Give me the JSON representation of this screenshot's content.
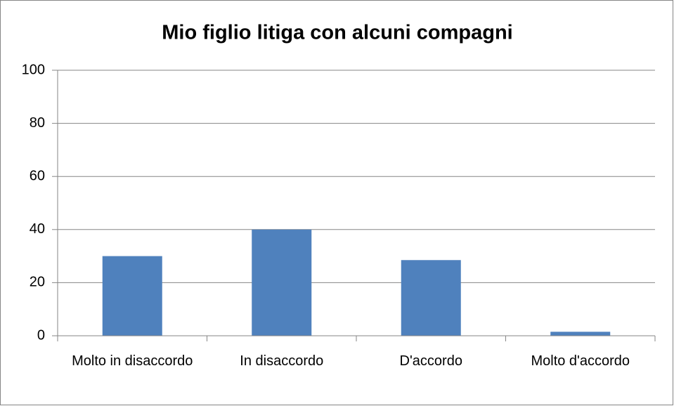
{
  "chart_data": {
    "type": "bar",
    "title": "Mio figlio litiga con alcuni compagni",
    "categories": [
      "Molto in disaccordo",
      "In disaccordo",
      "D'accordo",
      "Molto d'accordo"
    ],
    "values": [
      30,
      40,
      28.5,
      1.5
    ],
    "color": "#4f81bd",
    "ylim": [
      0,
      100
    ],
    "yticks": [
      0,
      20,
      40,
      60,
      80,
      100
    ],
    "grid": true
  }
}
